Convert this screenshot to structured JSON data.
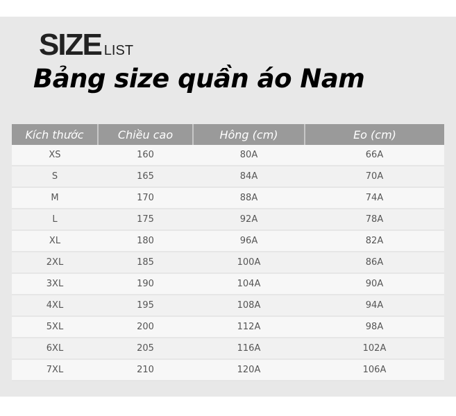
{
  "header": {
    "logo_big": "SIZE",
    "logo_small": "LIST",
    "title": "Bảng size quần áo Nam"
  },
  "table": {
    "columns": [
      "Kích thước",
      "Chiều cao",
      "Hông (cm)",
      "Eo (cm)"
    ],
    "rows": [
      [
        "XS",
        "160",
        "80A",
        "66A"
      ],
      [
        "S",
        "165",
        "84A",
        "70A"
      ],
      [
        "M",
        "170",
        "88A",
        "74A"
      ],
      [
        "L",
        "175",
        "92A",
        "78A"
      ],
      [
        "XL",
        "180",
        "96A",
        "82A"
      ],
      [
        "2XL",
        "185",
        "100A",
        "86A"
      ],
      [
        "3XL",
        "190",
        "104A",
        "90A"
      ],
      [
        "4XL",
        "195",
        "108A",
        "94A"
      ],
      [
        "5XL",
        "200",
        "112A",
        "98A"
      ],
      [
        "6XL",
        "205",
        "116A",
        "102A"
      ],
      [
        "7XL",
        "210",
        "120A",
        "106A"
      ]
    ]
  }
}
